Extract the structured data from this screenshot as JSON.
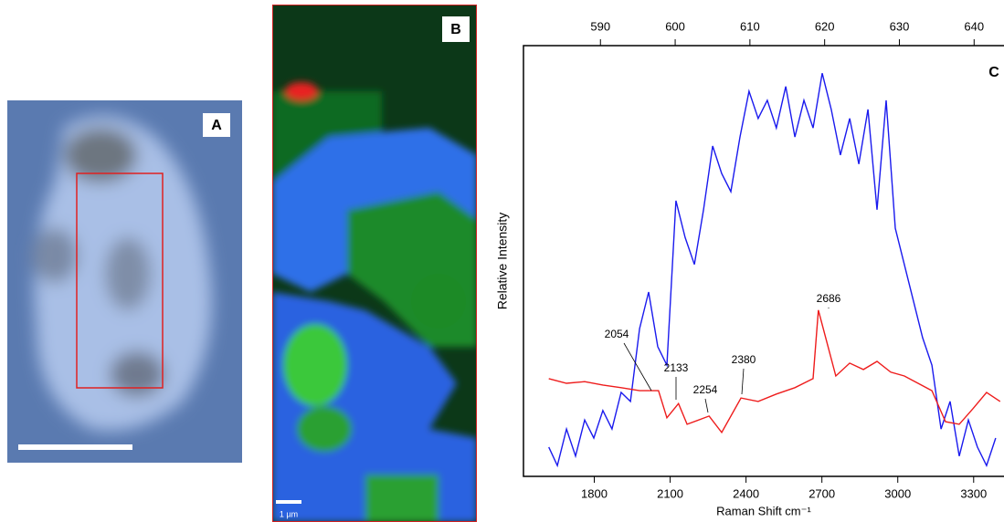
{
  "panels": {
    "a_label": "A",
    "b_label": "B",
    "b_scale": "1 µm"
  },
  "chart_data": {
    "type": "line",
    "panel_label": "C",
    "xlabel": "Raman Shift cm⁻¹",
    "ylabel": "Relative Intensity",
    "xlim": [
      1520,
      3420
    ],
    "xticks": [
      1800,
      2100,
      2400,
      2700,
      3000,
      3300
    ],
    "x2lim": [
      579.7,
      644
    ],
    "x2ticks": [
      590,
      600,
      610,
      620,
      630,
      640
    ],
    "ylim": [
      0,
      100
    ],
    "annotations": [
      "2054",
      "2133",
      "2254",
      "2380",
      "2686"
    ],
    "series": [
      {
        "color": "#ee1c1c",
        "x": [
          1620,
          1690,
          1762,
          1834,
          1906,
          1979,
          2054,
          2087,
          2133,
          2167,
          2254,
          2304,
          2380,
          2448,
          2520,
          2593,
          2665,
          2686,
          2755,
          2810,
          2864,
          2918,
          2972,
          3026,
          3080,
          3135,
          3189,
          3243,
          3297,
          3351,
          3405
        ],
        "values": [
          22.7,
          21.6,
          22.0,
          21.2,
          20.6,
          19.9,
          19.9,
          13.6,
          16.9,
          12.1,
          14.0,
          10.2,
          18.2,
          17.4,
          19.1,
          20.6,
          22.7,
          38.6,
          23.3,
          26.3,
          24.8,
          26.7,
          24.2,
          23.3,
          21.6,
          19.9,
          12.7,
          12.1,
          15.7,
          19.5,
          17.4
        ]
      },
      {
        "color": "#1a1aee",
        "x": [
          1620,
          1654,
          1690,
          1726,
          1762,
          1798,
          1834,
          1870,
          1906,
          1943,
          1979,
          2015,
          2051,
          2087,
          2123,
          2159,
          2196,
          2232,
          2268,
          2304,
          2340,
          2376,
          2412,
          2448,
          2484,
          2520,
          2557,
          2593,
          2629,
          2665,
          2701,
          2737,
          2773,
          2810,
          2846,
          2882,
          2918,
          2954,
          2990,
          3026,
          3062,
          3098,
          3135,
          3171,
          3207,
          3243,
          3279,
          3315,
          3351,
          3387
        ],
        "values": [
          6.8,
          2.5,
          11.0,
          4.7,
          13.1,
          8.9,
          15.3,
          11.0,
          19.5,
          17.4,
          34.3,
          42.8,
          30.1,
          25.8,
          64.0,
          55.5,
          49.2,
          61.9,
          76.7,
          70.3,
          66.1,
          78.8,
          89.4,
          83.1,
          87.3,
          80.9,
          90.5,
          78.8,
          87.3,
          80.9,
          93.6,
          85.2,
          74.6,
          83.1,
          72.5,
          85.2,
          61.9,
          87.3,
          57.6,
          49.2,
          40.7,
          32.2,
          25.8,
          11.0,
          17.4,
          4.7,
          13.1,
          6.8,
          2.5,
          8.9
        ]
      }
    ]
  }
}
